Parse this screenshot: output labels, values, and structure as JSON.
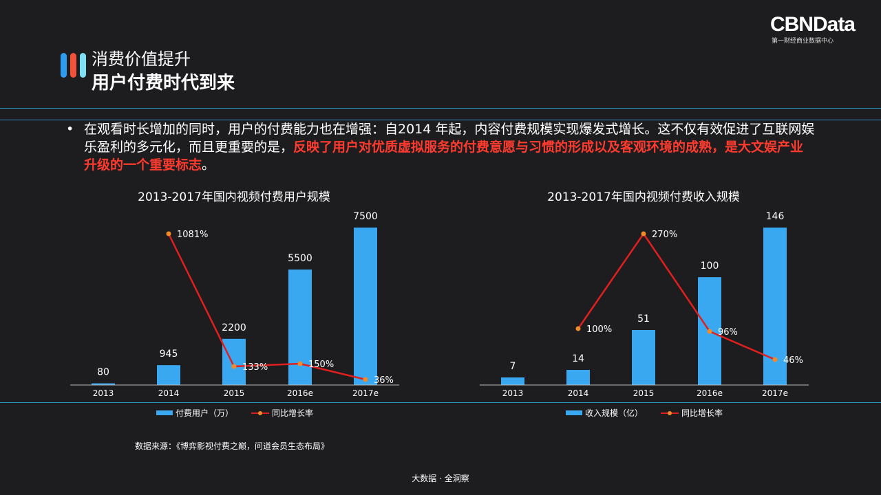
{
  "brand": {
    "name": "CBNData",
    "subtitle": "第一财经商业数据中心"
  },
  "title": {
    "line1": "消费价值提升",
    "line2": "用户付费时代到来"
  },
  "bullet": {
    "normal": "在观看时长增加的同时，用户的付费能力也在增强：自2014 年起，内容付费规模实现爆发式增长。这不仅有效促进了互联网娱乐盈利的多元化，而且更重要的是，",
    "highlight": "反映了用户对优质虚拟服务的付费意愿与习惯的形成以及客观环境的成熟，是大文娱产业升级的一个重要标志",
    "end": "。"
  },
  "colors": {
    "bar": "#3aa8f0",
    "line": "#e01f1f",
    "marker": "#f08a2a",
    "divider": "#2f8fc8"
  },
  "chart_data": [
    {
      "type": "bar",
      "title": "2013-2017年国内视频付费用户规模",
      "categories": [
        "2013",
        "2014",
        "2015",
        "2016e",
        "2017e"
      ],
      "series": [
        {
          "name": "付费用户（万）",
          "type": "bar",
          "values": [
            80,
            945,
            2200,
            5500,
            7500
          ],
          "labels": [
            "80",
            "945",
            "2200",
            "5500",
            "7500"
          ]
        },
        {
          "name": "同比增长率",
          "type": "line",
          "values": [
            null,
            1081,
            133,
            150,
            36
          ],
          "labels": [
            "",
            "1081%",
            "133%",
            "150%",
            "36%"
          ]
        }
      ],
      "bar_max": 7500,
      "line_max": 1081
    },
    {
      "type": "bar",
      "title": "2013-2017年国内视频付费收入规模",
      "categories": [
        "2013",
        "2014",
        "2015",
        "2016e",
        "2017e"
      ],
      "series": [
        {
          "name": "收入规模（亿）",
          "type": "bar",
          "values": [
            7,
            14,
            51,
            100,
            146
          ],
          "labels": [
            "7",
            "14",
            "51",
            "100",
            "146"
          ]
        },
        {
          "name": "同比增长率",
          "type": "line",
          "values": [
            null,
            100,
            270,
            96,
            46
          ],
          "labels": [
            "",
            "100%",
            "270%",
            "96%",
            "46%"
          ]
        }
      ],
      "bar_max": 146,
      "line_max": 270
    }
  ],
  "source": "数据来源：《博弈影视付费之巅，问道会员生态布局》",
  "footer": "大数据 · 全洞察"
}
